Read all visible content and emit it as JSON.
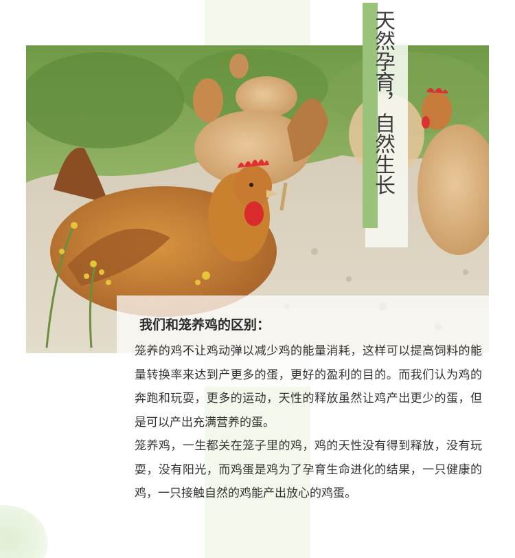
{
  "hero": {
    "image": "free-range-chickens-photo",
    "vertical_title": "天然孕育，自然生长"
  },
  "section": {
    "heading": "我们和笼养鸡的区别：",
    "paragraphs": [
      "笼养的鸡不让鸡动弹以减少鸡的能量消耗，这样可以提高饲料的能量转换率来达到产更多的蛋，更好的盈利的目的。而我们认为鸡的奔跑和玩耍，更多的运动，天性的释放虽然让鸡产出更少的蛋，但是可以产出充满营养的蛋。",
      "笼养鸡，一生都关在笼子里的鸡，鸡的天性没有得到释放，没有玩耍，没有阳光，而鸡蛋是鸡为了孕育生命进化的结果，一只健康的鸡，一只接触自然的鸡能产出放心的鸡蛋。"
    ]
  },
  "colors": {
    "accent_green": "#9bc27a",
    "strip": "#f3f8ec",
    "text": "#333333"
  }
}
